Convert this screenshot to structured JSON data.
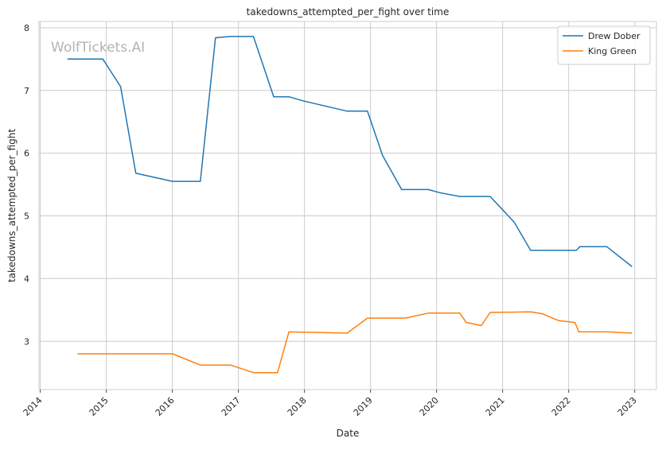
{
  "chart_data": {
    "type": "line",
    "title": "takedowns_attempted_per_fight over time",
    "xlabel": "Date",
    "ylabel": "takedowns_attempted_per_fight",
    "watermark": "WolfTickets.AI",
    "x_ticks": [
      "2014",
      "2015",
      "2016",
      "2017",
      "2018",
      "2019",
      "2020",
      "2021",
      "2022",
      "2023"
    ],
    "y_ticks": [
      "3",
      "4",
      "5",
      "6",
      "7",
      "8"
    ],
    "xlim": [
      "2013-12-25",
      "2023-05-01"
    ],
    "ylim": [
      2.23,
      8.1
    ],
    "grid": true,
    "legend_position": "top-right",
    "series": [
      {
        "name": "Drew Dober",
        "color": "#1f77b4",
        "points": [
          [
            "2014-05-31",
            7.5
          ],
          [
            "2014-12-13",
            7.5
          ],
          [
            "2015-03-21",
            7.06
          ],
          [
            "2015-06-13",
            5.68
          ],
          [
            "2016-01-02",
            5.55
          ],
          [
            "2016-06-04",
            5.55
          ],
          [
            "2016-08-27",
            7.84
          ],
          [
            "2016-11-19",
            7.86
          ],
          [
            "2017-03-25",
            7.86
          ],
          [
            "2017-07-15",
            6.9
          ],
          [
            "2017-10-07",
            6.9
          ],
          [
            "2017-12-30",
            6.83
          ],
          [
            "2018-08-25",
            6.67
          ],
          [
            "2018-12-15",
            6.67
          ],
          [
            "2019-03-09",
            5.96
          ],
          [
            "2019-06-22",
            5.42
          ],
          [
            "2019-11-16",
            5.42
          ],
          [
            "2020-01-18",
            5.37
          ],
          [
            "2020-05-09",
            5.31
          ],
          [
            "2020-10-24",
            5.31
          ],
          [
            "2021-03-06",
            4.9
          ],
          [
            "2021-06-05",
            4.45
          ],
          [
            "2022-02-12",
            4.45
          ],
          [
            "2022-03-05",
            4.51
          ],
          [
            "2022-07-30",
            4.51
          ],
          [
            "2022-12-17",
            4.19
          ]
        ]
      },
      {
        "name": "King Green",
        "color": "#ff7f0e",
        "points": [
          [
            "2014-07-26",
            2.8
          ],
          [
            "2016-01-02",
            2.8
          ],
          [
            "2016-06-04",
            2.62
          ],
          [
            "2016-11-19",
            2.62
          ],
          [
            "2017-03-25",
            2.5
          ],
          [
            "2017-08-05",
            2.5
          ],
          [
            "2017-10-07",
            3.15
          ],
          [
            "2018-08-25",
            3.13
          ],
          [
            "2018-12-15",
            3.37
          ],
          [
            "2019-07-13",
            3.37
          ],
          [
            "2019-11-16",
            3.45
          ],
          [
            "2020-05-09",
            3.45
          ],
          [
            "2020-06-13",
            3.3
          ],
          [
            "2020-09-05",
            3.25
          ],
          [
            "2020-10-24",
            3.46
          ],
          [
            "2021-06-05",
            3.47
          ],
          [
            "2021-08-07",
            3.44
          ],
          [
            "2021-11-06",
            3.33
          ],
          [
            "2022-02-05",
            3.3
          ],
          [
            "2022-02-26",
            3.15
          ],
          [
            "2022-07-30",
            3.15
          ],
          [
            "2022-12-17",
            3.13
          ]
        ]
      }
    ]
  }
}
